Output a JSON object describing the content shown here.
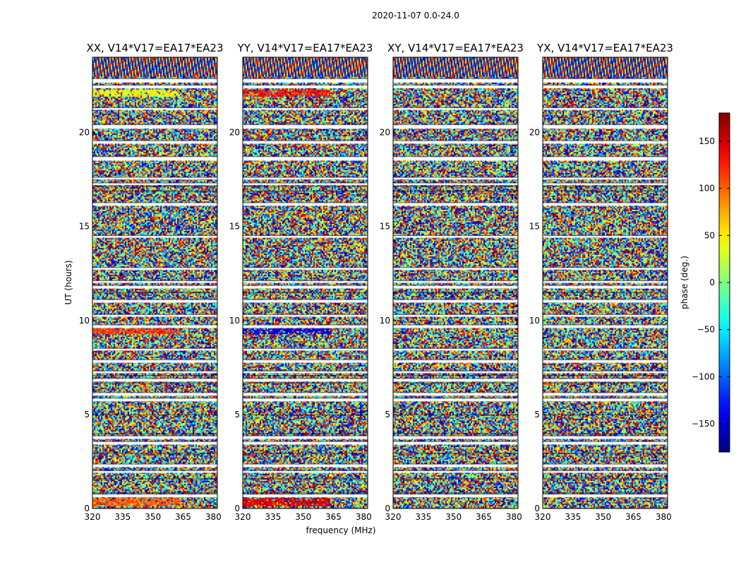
{
  "chart_data": {
    "type": "heatmap",
    "suptitle": "2020-11-07 0.0-24.0",
    "xlabel": "frequency (MHz)",
    "ylabel": "UT (hours)",
    "xlim": [
      320,
      382
    ],
    "ylim": [
      0,
      24
    ],
    "xticks": [
      320,
      335,
      350,
      365,
      380
    ],
    "yticks": [
      0,
      5,
      10,
      15,
      20
    ],
    "panels": [
      {
        "title": "XX, V14*V17=EA17*EA23",
        "color_bias": {
          "start": 0.0,
          "end": 0.4,
          "value": 0.72
        },
        "bias_bands": [
          [
            9.3,
            9.6,
            0.82
          ],
          [
            21.9,
            22.3,
            0.62
          ],
          [
            0.1,
            0.6,
            0.78
          ]
        ]
      },
      {
        "title": "YY, V14*V17=EA17*EA23",
        "color_bias": {
          "start": 0.0,
          "end": 0.4,
          "value": 0.1
        },
        "bias_bands": [
          [
            9.3,
            9.6,
            0.1
          ],
          [
            21.9,
            22.3,
            0.85
          ],
          [
            0.1,
            0.6,
            0.9
          ]
        ]
      },
      {
        "title": "XY, V14*V17=EA17*EA23",
        "color_bias": null,
        "bias_bands": []
      },
      {
        "title": "YX, V14*V17=EA17*EA23",
        "color_bias": null,
        "bias_bands": []
      }
    ],
    "flagged_rows_hours": [
      [
        0.6,
        0.75
      ],
      [
        1.9,
        2.0
      ],
      [
        2.2,
        2.35
      ],
      [
        3.4,
        3.55
      ],
      [
        3.7,
        3.85
      ],
      [
        5.7,
        5.85
      ],
      [
        6.0,
        6.15
      ],
      [
        6.75,
        6.9
      ],
      [
        7.2,
        7.3
      ],
      [
        7.75,
        7.9
      ],
      [
        8.4,
        8.5
      ],
      [
        9.6,
        9.75
      ],
      [
        10.2,
        10.3
      ],
      [
        10.95,
        11.1
      ],
      [
        11.7,
        11.85
      ],
      [
        12.0,
        12.1
      ],
      [
        12.7,
        12.8
      ],
      [
        14.4,
        14.5
      ],
      [
        16.1,
        16.25
      ],
      [
        17.2,
        17.3
      ],
      [
        17.5,
        17.6
      ],
      [
        18.5,
        18.7
      ],
      [
        19.4,
        19.55
      ],
      [
        20.2,
        20.4
      ],
      [
        21.2,
        21.3
      ],
      [
        22.35,
        22.5
      ],
      [
        22.65,
        22.85
      ]
    ],
    "colorbar": {
      "label": "phase (deg.)",
      "range": [
        -180,
        180
      ],
      "ticks": [
        150,
        100,
        50,
        0,
        -50,
        -100,
        -150
      ],
      "tick_labels": [
        "150",
        "100",
        "50",
        "0",
        "−50",
        "−100",
        "−150"
      ],
      "colormap": "jet"
    }
  }
}
